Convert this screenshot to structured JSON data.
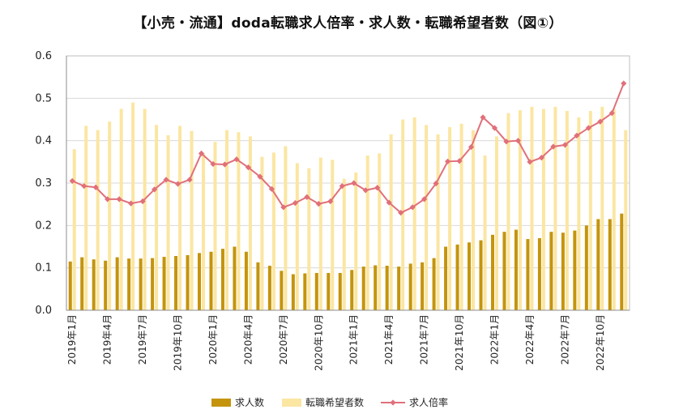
{
  "chart_data": {
    "type": "bar",
    "title": "【小売・流通】doda転職求人倍率・求人数・転職希望者数（図①）",
    "ylim": [
      0,
      0.6
    ],
    "y_ticks": [
      "0.0",
      "0.1",
      "0.2",
      "0.3",
      "0.4",
      "0.5",
      "0.6"
    ],
    "x_tick_labels": [
      "2019年1月",
      "2019年4月",
      "2019年7月",
      "2019年10月",
      "2020年1月",
      "2020年4月",
      "2020年7月",
      "2020年10月",
      "2021年1月",
      "2021年4月",
      "2021年7月",
      "2021年10月",
      "2022年1月",
      "2022年4月",
      "2022年7月",
      "2022年10月"
    ],
    "grid": true,
    "legend_position": "bottom",
    "series": [
      {
        "name": "求人数",
        "kind": "bar",
        "color": "#c4940c",
        "values": [
          0.115,
          0.125,
          0.12,
          0.117,
          0.125,
          0.122,
          0.122,
          0.123,
          0.126,
          0.128,
          0.13,
          0.135,
          0.138,
          0.145,
          0.15,
          0.138,
          0.113,
          0.105,
          0.093,
          0.085,
          0.087,
          0.088,
          0.088,
          0.088,
          0.095,
          0.103,
          0.106,
          0.105,
          0.103,
          0.11,
          0.113,
          0.123,
          0.15,
          0.155,
          0.16,
          0.165,
          0.178,
          0.185,
          0.19,
          0.168,
          0.17,
          0.185,
          0.183,
          0.188,
          0.2,
          0.215,
          0.215,
          0.228
        ]
      },
      {
        "name": "転職希望者数",
        "kind": "bar",
        "color": "#fbe6a2",
        "values": [
          0.38,
          0.435,
          0.425,
          0.445,
          0.475,
          0.49,
          0.475,
          0.437,
          0.413,
          0.435,
          0.423,
          0.37,
          0.397,
          0.425,
          0.42,
          0.41,
          0.362,
          0.372,
          0.387,
          0.347,
          0.335,
          0.36,
          0.355,
          0.31,
          0.325,
          0.365,
          0.37,
          0.415,
          0.45,
          0.455,
          0.437,
          0.415,
          0.432,
          0.44,
          0.425,
          0.365,
          0.41,
          0.465,
          0.472,
          0.48,
          0.475,
          0.48,
          0.47,
          0.455,
          0.47,
          0.48,
          0.475,
          0.425
        ]
      },
      {
        "name": "求人倍率",
        "kind": "line",
        "color": "#e0707a",
        "values": [
          0.305,
          0.293,
          0.29,
          0.262,
          0.262,
          0.252,
          0.257,
          0.285,
          0.308,
          0.298,
          0.308,
          0.37,
          0.345,
          0.344,
          0.356,
          0.337,
          0.315,
          0.286,
          0.243,
          0.253,
          0.267,
          0.251,
          0.257,
          0.293,
          0.3,
          0.283,
          0.289,
          0.254,
          0.23,
          0.243,
          0.262,
          0.299,
          0.351,
          0.352,
          0.385,
          0.455,
          0.43,
          0.398,
          0.4,
          0.35,
          0.36,
          0.386,
          0.39,
          0.412,
          0.43,
          0.445,
          0.465,
          0.535
        ]
      }
    ]
  },
  "colors": {
    "plot_border": "#bfbfbf",
    "grid": "#d9d9d9"
  }
}
